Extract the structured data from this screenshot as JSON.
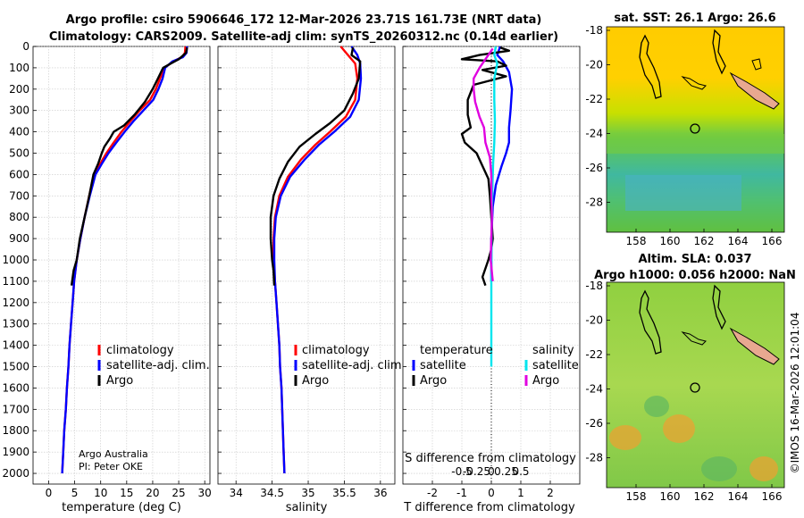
{
  "header": {
    "title_line1": "Argo profile: csiro 5906646_172 12-Mar-2026 23.71S 161.73E (NRT data)",
    "title_line2": "Climatology: CARS2009. Satellite-adj clim: synTS_20260312.nc (0.14d earlier)"
  },
  "colors": {
    "climatology": "#ff0000",
    "satellite": "#0000ff",
    "argo": "#000000",
    "sat_salinity": "#00e5ee",
    "argo_salinity": "#e000e0"
  },
  "chart_data": [
    {
      "id": "temperature",
      "type": "line",
      "xlabel": "temperature (deg C)",
      "ylabel": "",
      "xlim": [
        -3,
        31
      ],
      "ylim": [
        2050,
        0
      ],
      "xticks": [
        0,
        5,
        10,
        15,
        20,
        25,
        30
      ],
      "xticklabels": [
        "0",
        "5",
        "10",
        "15",
        "20",
        "25",
        "30"
      ],
      "yticks": [
        0,
        100,
        200,
        300,
        400,
        500,
        600,
        700,
        800,
        900,
        1000,
        1100,
        1200,
        1300,
        1400,
        1500,
        1600,
        1700,
        1800,
        1900,
        2000
      ],
      "yticklabels": [
        "0",
        "100",
        "200",
        "300",
        "400",
        "500",
        "600",
        "700",
        "800",
        "900",
        "1000",
        "1100",
        "1200",
        "1300",
        "1400",
        "1500",
        "1600",
        "1700",
        "1800",
        "1900",
        "2000"
      ],
      "legend": [
        "climatology",
        "satellite-adj. clim.",
        "Argo"
      ],
      "note": [
        "Argo Australia",
        "PI: Peter OKE"
      ],
      "series": [
        {
          "name": "climatology",
          "color": "#ff0000",
          "points": [
            [
              26.3,
              0
            ],
            [
              26.2,
              30
            ],
            [
              25.6,
              50
            ],
            [
              24,
              70
            ],
            [
              22.3,
              100
            ],
            [
              21.4,
              150
            ],
            [
              20.6,
              200
            ],
            [
              19.5,
              250
            ],
            [
              17.5,
              300
            ],
            [
              15.7,
              350
            ],
            [
              14,
              400
            ],
            [
              12.5,
              450
            ],
            [
              11.1,
              500
            ],
            [
              9.9,
              550
            ],
            [
              8.7,
              600
            ],
            [
              7.8,
              700
            ],
            [
              6.9,
              800
            ],
            [
              6.1,
              900
            ],
            [
              5.4,
              1000
            ],
            [
              4.9,
              1100
            ],
            [
              4.6,
              1200
            ],
            [
              4.3,
              1300
            ],
            [
              4.0,
              1400
            ],
            [
              3.8,
              1500
            ],
            [
              3.5,
              1600
            ],
            [
              3.3,
              1700
            ],
            [
              3.0,
              1800
            ],
            [
              2.8,
              1900
            ],
            [
              2.6,
              2000
            ]
          ]
        },
        {
          "name": "satellite-adj. clim.",
          "color": "#0000ff",
          "points": [
            [
              26.6,
              0
            ],
            [
              26.5,
              30
            ],
            [
              25.8,
              50
            ],
            [
              23.8,
              70
            ],
            [
              22.4,
              100
            ],
            [
              21.9,
              150
            ],
            [
              21.1,
              200
            ],
            [
              20.1,
              250
            ],
            [
              18.2,
              300
            ],
            [
              16.3,
              350
            ],
            [
              14.6,
              400
            ],
            [
              13.0,
              450
            ],
            [
              11.5,
              500
            ],
            [
              10.2,
              550
            ],
            [
              9.0,
              600
            ],
            [
              7.9,
              700
            ],
            [
              6.9,
              800
            ],
            [
              6.1,
              900
            ],
            [
              5.4,
              1000
            ],
            [
              4.9,
              1100
            ],
            [
              4.6,
              1200
            ],
            [
              4.3,
              1300
            ],
            [
              4.0,
              1400
            ],
            [
              3.8,
              1500
            ],
            [
              3.5,
              1600
            ],
            [
              3.3,
              1700
            ],
            [
              3.0,
              1800
            ],
            [
              2.8,
              1900
            ],
            [
              2.6,
              2000
            ]
          ]
        },
        {
          "name": "Argo",
          "color": "#000000",
          "points": [
            [
              26.6,
              5
            ],
            [
              26.4,
              30
            ],
            [
              25.0,
              60
            ],
            [
              23.5,
              80
            ],
            [
              22.0,
              100
            ],
            [
              21.0,
              150
            ],
            [
              20.0,
              200
            ],
            [
              18.5,
              260
            ],
            [
              16.5,
              320
            ],
            [
              14.5,
              370
            ],
            [
              12.5,
              400
            ],
            [
              11.8,
              430
            ],
            [
              10.7,
              470
            ],
            [
              10.2,
              500
            ],
            [
              9.5,
              550
            ],
            [
              8.6,
              600
            ],
            [
              7.8,
              700
            ],
            [
              6.9,
              800
            ],
            [
              6.0,
              900
            ],
            [
              5.4,
              1000
            ],
            [
              4.8,
              1050
            ],
            [
              4.4,
              1120
            ]
          ]
        }
      ]
    },
    {
      "id": "salinity",
      "type": "line",
      "xlabel": "salinity",
      "xlim": [
        33.75,
        36.2
      ],
      "ylim": [
        2050,
        0
      ],
      "xticks": [
        34,
        34.5,
        35,
        35.5,
        36
      ],
      "xticklabels": [
        "34",
        "34.5",
        "35",
        "35.5",
        "36"
      ],
      "legend": [
        "climatology",
        "satellite-adj. clim.",
        "Argo"
      ],
      "series": [
        {
          "name": "climatology",
          "color": "#ff0000",
          "points": [
            [
              35.45,
              0
            ],
            [
              35.55,
              40
            ],
            [
              35.65,
              80
            ],
            [
              35.68,
              150
            ],
            [
              35.65,
              250
            ],
            [
              35.52,
              330
            ],
            [
              35.3,
              400
            ],
            [
              35.1,
              460
            ],
            [
              34.9,
              530
            ],
            [
              34.72,
              610
            ],
            [
              34.6,
              700
            ],
            [
              34.54,
              800
            ],
            [
              34.52,
              900
            ],
            [
              34.52,
              1000
            ],
            [
              34.54,
              1100
            ],
            [
              34.56,
              1200
            ],
            [
              34.58,
              1300
            ],
            [
              34.6,
              1400
            ],
            [
              34.61,
              1500
            ],
            [
              34.63,
              1600
            ],
            [
              34.64,
              1700
            ],
            [
              34.65,
              1800
            ],
            [
              34.66,
              1900
            ],
            [
              34.67,
              2000
            ]
          ]
        },
        {
          "name": "satellite-adj. clim.",
          "color": "#0000ff",
          "points": [
            [
              35.6,
              0
            ],
            [
              35.68,
              40
            ],
            [
              35.72,
              80
            ],
            [
              35.73,
              150
            ],
            [
              35.7,
              250
            ],
            [
              35.58,
              330
            ],
            [
              35.36,
              400
            ],
            [
              35.15,
              460
            ],
            [
              34.95,
              530
            ],
            [
              34.75,
              610
            ],
            [
              34.62,
              700
            ],
            [
              34.55,
              800
            ],
            [
              34.53,
              900
            ],
            [
              34.53,
              1000
            ],
            [
              34.54,
              1100
            ],
            [
              34.56,
              1200
            ],
            [
              34.58,
              1300
            ],
            [
              34.6,
              1400
            ],
            [
              34.61,
              1500
            ],
            [
              34.63,
              1600
            ],
            [
              34.64,
              1700
            ],
            [
              34.65,
              1800
            ],
            [
              34.66,
              1900
            ],
            [
              34.67,
              2000
            ]
          ]
        },
        {
          "name": "Argo",
          "color": "#000000",
          "points": [
            [
              35.62,
              5
            ],
            [
              35.6,
              40
            ],
            [
              35.72,
              70
            ],
            [
              35.7,
              150
            ],
            [
              35.62,
              220
            ],
            [
              35.5,
              300
            ],
            [
              35.3,
              360
            ],
            [
              35.1,
              410
            ],
            [
              34.88,
              470
            ],
            [
              34.72,
              540
            ],
            [
              34.6,
              620
            ],
            [
              34.52,
              700
            ],
            [
              34.48,
              800
            ],
            [
              34.48,
              900
            ],
            [
              34.5,
              1000
            ],
            [
              34.52,
              1050
            ],
            [
              34.53,
              1120
            ]
          ]
        }
      ]
    },
    {
      "id": "difference",
      "type": "line",
      "xlabel": "T difference from climatology",
      "xlabel_top": "S difference from climatology",
      "xlim": [
        -3,
        3
      ],
      "ylim": [
        2050,
        0
      ],
      "xticks": [
        -2,
        -1,
        0,
        1,
        2
      ],
      "xticklabels": [
        "-2",
        "-1",
        "0",
        "1",
        "2"
      ],
      "s_xticks": [
        -1,
        -0.5,
        0,
        0.5,
        1
      ],
      "s_xticklabels": [
        "-0.5",
        "-0.25",
        "0",
        "0.25",
        "0.5"
      ],
      "legend_t": {
        "heading": "temperature",
        "satellite": "satellite",
        "argo": "Argo"
      },
      "legend_s": {
        "heading": "salinity",
        "satellite": "satellite",
        "argo": "Argo"
      },
      "series": [
        {
          "name": "T satellite",
          "color": "#0000ff",
          "points": [
            [
              0.3,
              0
            ],
            [
              0.2,
              40
            ],
            [
              0.4,
              70
            ],
            [
              0.6,
              120
            ],
            [
              0.7,
              200
            ],
            [
              0.65,
              300
            ],
            [
              0.6,
              380
            ],
            [
              0.6,
              450
            ],
            [
              0.5,
              500
            ],
            [
              0.35,
              560
            ],
            [
              0.15,
              650
            ],
            [
              0.05,
              750
            ],
            [
              0,
              900
            ],
            [
              0,
              1000
            ],
            [
              0,
              1100
            ]
          ]
        },
        {
          "name": "T Argo",
          "color": "#000000",
          "points": [
            [
              0.3,
              5
            ],
            [
              0.6,
              20
            ],
            [
              -0.4,
              40
            ],
            [
              -1.0,
              60
            ],
            [
              0.2,
              70
            ],
            [
              0.5,
              90
            ],
            [
              -0.3,
              110
            ],
            [
              0.5,
              140
            ],
            [
              -0.6,
              180
            ],
            [
              -0.8,
              250
            ],
            [
              -0.8,
              320
            ],
            [
              -0.7,
              380
            ],
            [
              -1.0,
              410
            ],
            [
              -0.9,
              450
            ],
            [
              -0.5,
              500
            ],
            [
              -0.3,
              560
            ],
            [
              -0.1,
              620
            ],
            [
              -0.05,
              700
            ],
            [
              0,
              800
            ],
            [
              0.05,
              900
            ],
            [
              0,
              950
            ],
            [
              -0.1,
              1000
            ],
            [
              -0.3,
              1080
            ],
            [
              -0.2,
              1120
            ]
          ]
        },
        {
          "name": "S satellite",
          "color": "#00e5ee",
          "points": [
            [
              0.15,
              0
            ],
            [
              0.1,
              40
            ],
            [
              0.2,
              80
            ],
            [
              0.1,
              150
            ],
            [
              0.1,
              250
            ],
            [
              0.12,
              350
            ],
            [
              0.1,
              450
            ],
            [
              0.06,
              550
            ],
            [
              0.04,
              650
            ],
            [
              0.02,
              750
            ],
            [
              0.01,
              900
            ],
            [
              0,
              1100
            ],
            [
              0,
              1300
            ],
            [
              0,
              1500
            ]
          ]
        },
        {
          "name": "S Argo",
          "color": "#e000e0",
          "points": [
            [
              0.05,
              10
            ],
            [
              -0.2,
              60
            ],
            [
              -0.4,
              100
            ],
            [
              -0.6,
              150
            ],
            [
              -0.6,
              200
            ],
            [
              -0.55,
              260
            ],
            [
              -0.4,
              330
            ],
            [
              -0.25,
              380
            ],
            [
              -0.2,
              450
            ],
            [
              -0.05,
              520
            ],
            [
              0,
              600
            ],
            [
              0,
              700
            ],
            [
              0.02,
              800
            ],
            [
              0,
              900
            ],
            [
              -0.02,
              1000
            ],
            [
              0.05,
              1100
            ]
          ]
        }
      ]
    }
  ],
  "maps": [
    {
      "id": "sst-map",
      "title": "sat. SST: 26.1 Argo: 26.6",
      "lon_ticks": [
        "158",
        "160",
        "162",
        "164",
        "166"
      ],
      "lat_ticks": [
        "-18",
        "-20",
        "-22",
        "-24",
        "-26",
        "-28"
      ]
    },
    {
      "id": "sla-map",
      "title_line1": "Altim. SLA: 0.037",
      "title_line2": "Argo h1000: 0.056 h2000: NaN",
      "lon_ticks": [
        "158",
        "160",
        "162",
        "164",
        "166"
      ],
      "lat_ticks": [
        "-18",
        "-20",
        "-22",
        "-24",
        "-26",
        "-28"
      ]
    }
  ],
  "watermark": "©IMOS 16-Mar-2026 12:01:04"
}
